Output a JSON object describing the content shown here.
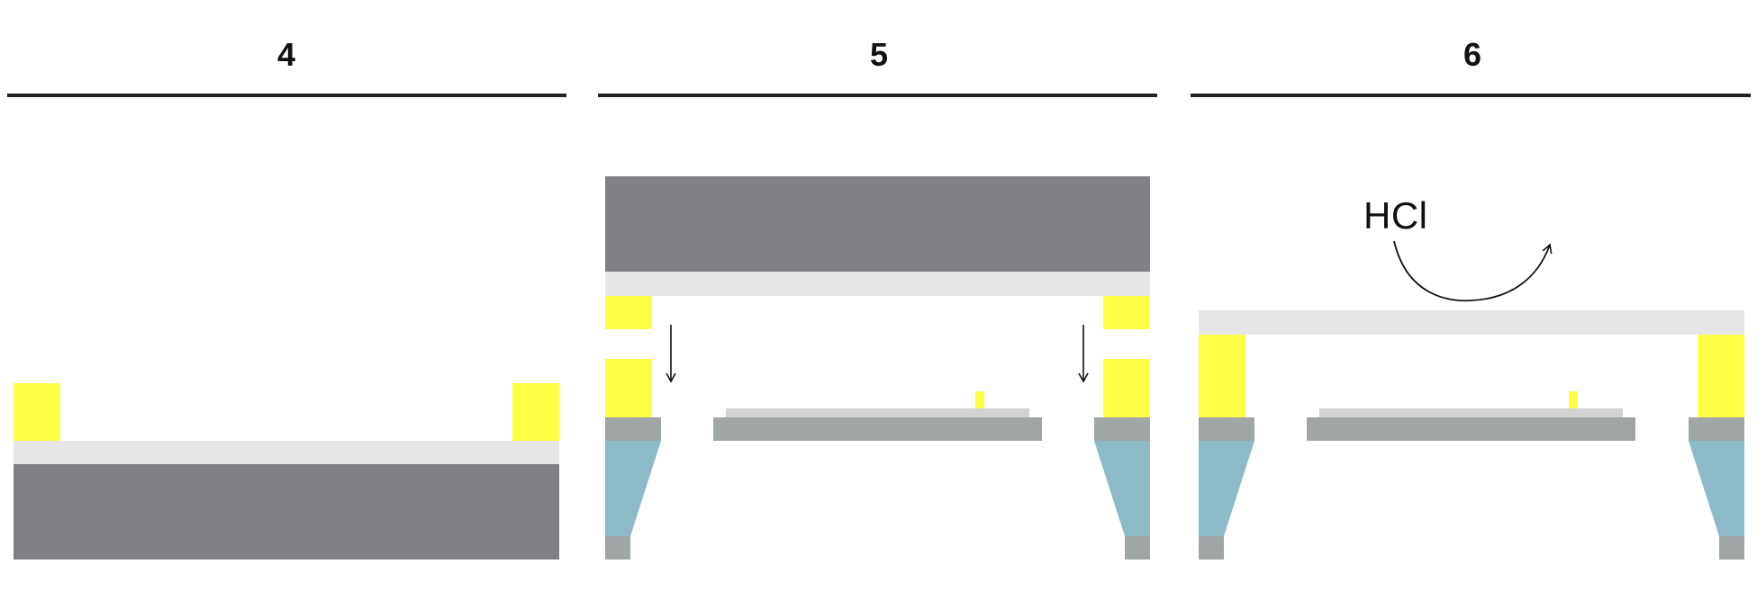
{
  "steps": [
    {
      "label": "4"
    },
    {
      "label": "5"
    },
    {
      "label": "6"
    }
  ],
  "annotation": {
    "reagent": "HCl"
  },
  "colors": {
    "dark_substrate": "#808184",
    "light_layer": "#e6e6e7",
    "yellow_pillar": "#ffff45",
    "frame_gray": "#a0a5a6",
    "sample_light": "#d1d2d3",
    "blue_cone": "#8cbac7",
    "divider": "#222222",
    "arrow": "#111111"
  }
}
